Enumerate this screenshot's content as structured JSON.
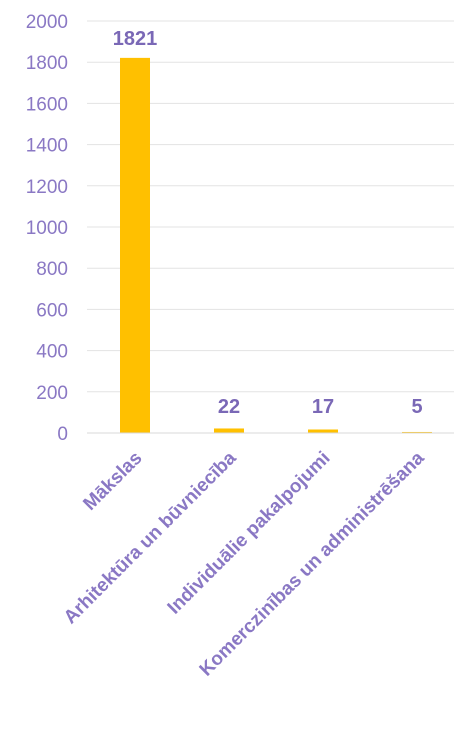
{
  "chart_data": {
    "type": "bar",
    "categories": [
      "Mākslas",
      "Arhitektūra un būvniecība",
      "Individuālie pakalpojumi",
      "Komerczinības un administrēšana"
    ],
    "values": [
      1821,
      22,
      17,
      5
    ],
    "data_labels": [
      "1821",
      "22",
      "17",
      "5"
    ],
    "ylim": [
      0,
      2000
    ],
    "yticks": [
      0,
      200,
      400,
      600,
      800,
      1000,
      1200,
      1400,
      1600,
      1800,
      2000
    ],
    "grid": true,
    "legend": "none",
    "colors": {
      "bar": "#FFC000",
      "tick_text": "#8A78C4",
      "data_label": "#7A68B6",
      "grid": "#E3E3E3"
    }
  }
}
